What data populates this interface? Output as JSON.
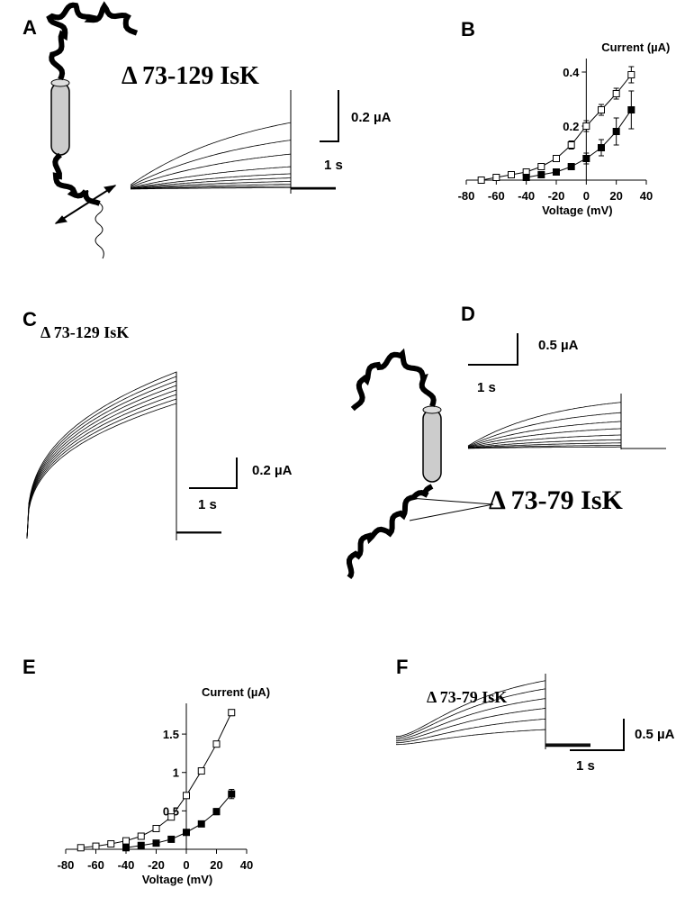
{
  "panel_labels": [
    "A",
    "B",
    "C",
    "D",
    "E",
    "F"
  ],
  "panel_a": {
    "construct": "Δ 73-129 IsK",
    "scale_current": "0.2 µA",
    "scale_time": "1 s"
  },
  "panel_c": {
    "construct": "Δ 73-129 IsK",
    "scale_current": "0.2 µA",
    "scale_time": "1 s"
  },
  "panel_d": {
    "construct": "Δ 73-79 IsK",
    "scale_current": "0.5 µA",
    "scale_time": "1 s"
  },
  "panel_f": {
    "construct": "Δ 73-79 IsK",
    "scale_current": "0.5 µA",
    "scale_time": "1 s"
  },
  "chart_data": [
    {
      "type": "line",
      "y_label": "Current (µA)",
      "x_label": "Voltage (mV)",
      "x": [
        -70,
        -60,
        -50,
        -40,
        -30,
        -20,
        -10,
        0,
        10,
        20,
        30
      ],
      "xlim": [
        -80,
        40
      ],
      "xticks": [
        -80,
        -60,
        -40,
        -20,
        0,
        20,
        40
      ],
      "ylim": [
        0,
        0.45
      ],
      "yticks": [
        0.2,
        0.4
      ],
      "series": [
        {
          "color": "#000000",
          "marker_fill": "#ffffff",
          "values": [
            0.0,
            0.01,
            0.02,
            0.03,
            0.05,
            0.08,
            0.13,
            0.2,
            0.26,
            0.32,
            0.39
          ],
          "errors": [
            0.005,
            0.005,
            0.005,
            0.005,
            0.01,
            0.01,
            0.015,
            0.02,
            0.02,
            0.02,
            0.03
          ]
        },
        {
          "color": "#000000",
          "marker_fill": "#000000",
          "values": [
            null,
            null,
            null,
            0.01,
            0.02,
            0.03,
            0.05,
            0.08,
            0.12,
            0.18,
            0.26
          ],
          "errors": [
            null,
            null,
            null,
            0.005,
            0.005,
            0.01,
            0.01,
            0.02,
            0.03,
            0.05,
            0.07
          ]
        }
      ]
    },
    {
      "type": "line",
      "y_label": "Current (µA)",
      "x_label": "Voltage (mV)",
      "x": [
        -70,
        -60,
        -50,
        -40,
        -30,
        -20,
        -10,
        0,
        10,
        20,
        30
      ],
      "xlim": [
        -80,
        40
      ],
      "xticks": [
        -80,
        -60,
        -40,
        -20,
        0,
        20,
        40
      ],
      "ylim": [
        0,
        1.9
      ],
      "yticks": [
        0.5,
        1,
        1.5
      ],
      "series": [
        {
          "color": "#000000",
          "marker_fill": "#ffffff",
          "values": [
            0.02,
            0.04,
            0.07,
            0.11,
            0.17,
            0.27,
            0.42,
            0.7,
            1.02,
            1.37,
            1.78
          ],
          "errors": [
            0.01,
            0.01,
            0.01,
            0.01,
            0.01,
            0.02,
            0.02,
            0.03,
            0.03,
            0.03,
            0.04
          ]
        },
        {
          "color": "#000000",
          "marker_fill": "#000000",
          "values": [
            null,
            null,
            null,
            0.02,
            0.05,
            0.08,
            0.13,
            0.22,
            0.33,
            0.49,
            0.72
          ],
          "errors": [
            null,
            null,
            null,
            0.01,
            0.01,
            0.01,
            0.02,
            0.03,
            0.03,
            0.04,
            0.06
          ]
        }
      ]
    }
  ]
}
